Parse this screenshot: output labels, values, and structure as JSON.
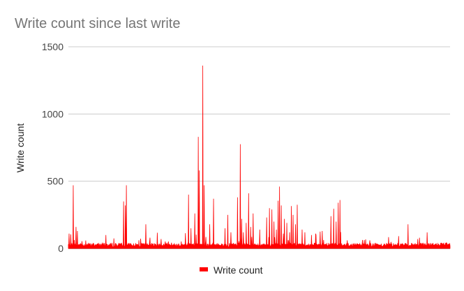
{
  "chart_data": {
    "type": "line",
    "title": "Write count since last write",
    "xlabel": "",
    "ylabel": "Write count",
    "ylim": [
      0,
      1500
    ],
    "yticks": [
      0,
      500,
      1000,
      1500
    ],
    "grid": true,
    "legend_position": "bottom",
    "series": [
      {
        "name": "Write count",
        "color": "#ff0000",
        "baseline": 25,
        "noise": 15,
        "count": 1100,
        "spikes": [
          [
            0.002,
            110
          ],
          [
            0.006,
            105
          ],
          [
            0.013,
            470
          ],
          [
            0.02,
            160
          ],
          [
            0.024,
            130
          ],
          [
            0.098,
            100
          ],
          [
            0.145,
            350
          ],
          [
            0.149,
            320
          ],
          [
            0.152,
            470
          ],
          [
            0.203,
            180
          ],
          [
            0.214,
            80
          ],
          [
            0.315,
            400
          ],
          [
            0.321,
            150
          ],
          [
            0.331,
            260
          ],
          [
            0.34,
            830
          ],
          [
            0.343,
            580
          ],
          [
            0.352,
            1360
          ],
          [
            0.356,
            470
          ],
          [
            0.37,
            180
          ],
          [
            0.38,
            370
          ],
          [
            0.41,
            150
          ],
          [
            0.418,
            250
          ],
          [
            0.426,
            120
          ],
          [
            0.443,
            380
          ],
          [
            0.45,
            775
          ],
          [
            0.454,
            220
          ],
          [
            0.459,
            120
          ],
          [
            0.466,
            190
          ],
          [
            0.472,
            410
          ],
          [
            0.478,
            160
          ],
          [
            0.484,
            260
          ],
          [
            0.501,
            140
          ],
          [
            0.52,
            230
          ],
          [
            0.527,
            300
          ],
          [
            0.533,
            290
          ],
          [
            0.539,
            200
          ],
          [
            0.545,
            140
          ],
          [
            0.55,
            355
          ],
          [
            0.553,
            460
          ],
          [
            0.558,
            320
          ],
          [
            0.566,
            220
          ],
          [
            0.572,
            190
          ],
          [
            0.58,
            120
          ],
          [
            0.584,
            315
          ],
          [
            0.589,
            250
          ],
          [
            0.595,
            180
          ],
          [
            0.6,
            325
          ],
          [
            0.612,
            140
          ],
          [
            0.62,
            120
          ],
          [
            0.637,
            100
          ],
          [
            0.648,
            110
          ],
          [
            0.66,
            125
          ],
          [
            0.665,
            130
          ],
          [
            0.688,
            240
          ],
          [
            0.695,
            295
          ],
          [
            0.702,
            200
          ],
          [
            0.707,
            340
          ],
          [
            0.712,
            360
          ],
          [
            0.731,
            60
          ],
          [
            0.79,
            60
          ],
          [
            0.89,
            180
          ],
          [
            0.915,
            70
          ]
        ]
      }
    ]
  }
}
